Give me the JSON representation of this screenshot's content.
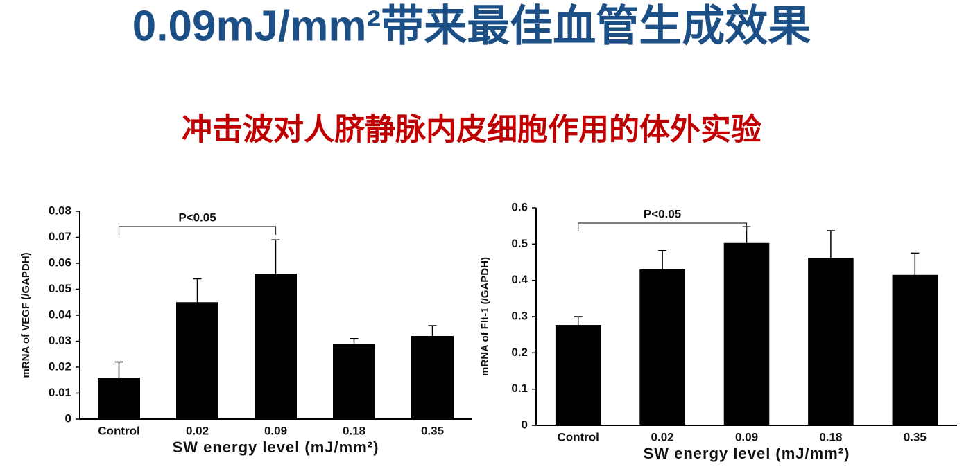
{
  "title": "0.09mJ/mm²带来最佳血管生成效果",
  "subtitle": "冲击波对人脐静脉内皮细胞作用的体外实验",
  "chart_data": [
    {
      "type": "bar",
      "ylabel": "mRNA of VEGF (/GAPDH)",
      "xlabel": "SW energy level (mJ/mm²)",
      "annotation": "P<0.05",
      "categories": [
        "Control",
        "0.02",
        "0.09",
        "0.18",
        "0.35"
      ],
      "values": [
        0.016,
        0.045,
        0.056,
        0.029,
        0.032
      ],
      "errors": [
        0.006,
        0.009,
        0.013,
        0.002,
        0.004
      ],
      "color": "#000000",
      "ylim": [
        0,
        0.08
      ],
      "yticks": [
        0,
        0.01,
        0.02,
        0.03,
        0.04,
        0.05,
        0.06,
        0.07,
        0.08
      ]
    },
    {
      "type": "bar",
      "ylabel": "mRNA of Flt-1 (/GAPDH)",
      "xlabel": "SW energy level (mJ/mm²)",
      "annotation": "P<0.05",
      "categories": [
        "Control",
        "0.02",
        "0.09",
        "0.18",
        "0.35"
      ],
      "values": [
        0.277,
        0.43,
        0.503,
        0.462,
        0.415
      ],
      "errors": [
        0.023,
        0.052,
        0.045,
        0.075,
        0.06
      ],
      "color": "#000000",
      "ylim": [
        0,
        0.6
      ],
      "yticks": [
        0,
        0.1,
        0.2,
        0.3,
        0.4,
        0.5,
        0.6
      ]
    }
  ]
}
